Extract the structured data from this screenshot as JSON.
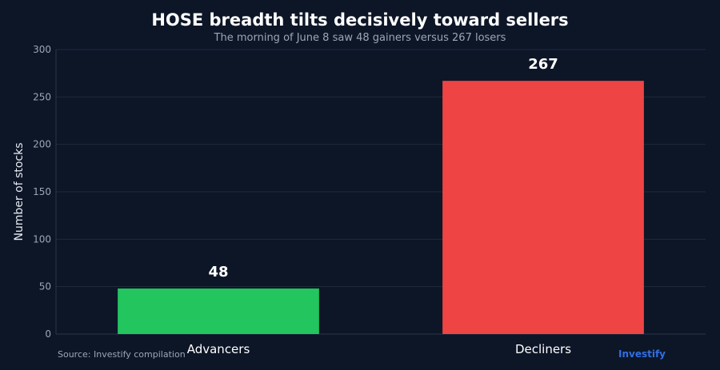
{
  "chart_data": {
    "type": "bar",
    "title": "HOSE breadth tilts decisively toward sellers",
    "subtitle": "The morning of June 8 saw 48 gainers versus 267 losers",
    "categories": [
      "Advancers",
      "Decliners"
    ],
    "values": [
      48,
      267
    ],
    "data_labels": [
      "48",
      "267"
    ],
    "colors": [
      "#22c55e",
      "#ef4444"
    ],
    "xlabel": "",
    "ylabel": "Number of stocks",
    "ylim": [
      0,
      300
    ],
    "yticks": [
      0,
      50,
      100,
      150,
      200,
      250,
      300
    ],
    "grid": true,
    "legend": "none"
  },
  "footer": {
    "source": "Source: Investify compilation",
    "brand": "Investify"
  },
  "colors": {
    "background": "#0d1627",
    "brand": "#2f6fe4"
  }
}
